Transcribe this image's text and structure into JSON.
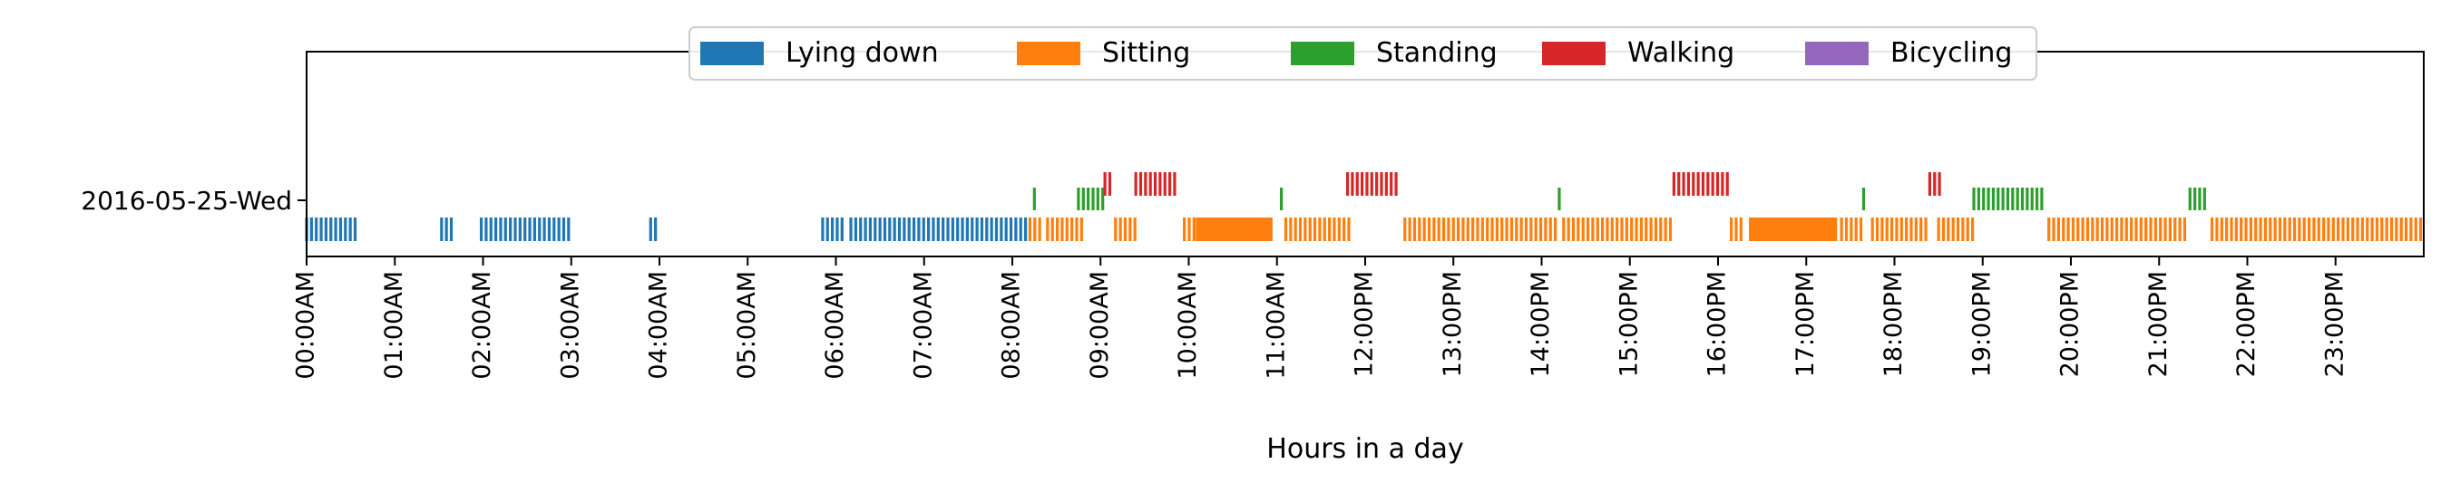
{
  "chart_data": {
    "type": "timeline",
    "xlabel": "Hours in a day",
    "ylabel": "",
    "row_label": "2016-05-25-Wed",
    "xlim_hours": [
      0,
      24
    ],
    "x_tick_labels": [
      "00:00AM",
      "01:00AM",
      "02:00AM",
      "03:00AM",
      "04:00AM",
      "05:00AM",
      "06:00AM",
      "07:00AM",
      "08:00AM",
      "09:00AM",
      "10:00AM",
      "11:00AM",
      "12:00PM",
      "13:00PM",
      "14:00PM",
      "15:00PM",
      "16:00PM",
      "17:00PM",
      "18:00PM",
      "19:00PM",
      "20:00PM",
      "21:00PM",
      "22:00PM",
      "23:00PM"
    ],
    "legend_position": "top-center",
    "series": [
      {
        "name": "Lying down",
        "color": "#1f77b4",
        "level": 0,
        "intervals": [
          [
            0.0,
            0.58
          ],
          [
            1.53,
            1.66
          ],
          [
            1.98,
            3.0
          ],
          [
            3.9,
            4.0
          ],
          [
            5.85,
            6.1
          ],
          [
            6.17,
            8.18
          ]
        ]
      },
      {
        "name": "Sitting",
        "color": "#ff7f0e",
        "level": 0,
        "intervals": [
          [
            8.2,
            8.35
          ],
          [
            8.4,
            8.8
          ],
          [
            9.17,
            9.4
          ],
          [
            9.95,
            10.08
          ],
          [
            10.08,
            10.95
          ],
          [
            11.1,
            11.85
          ],
          [
            12.45,
            14.2
          ],
          [
            14.25,
            15.5
          ],
          [
            16.15,
            16.3
          ],
          [
            16.35,
            17.35
          ],
          [
            17.4,
            17.65
          ],
          [
            17.75,
            18.4
          ],
          [
            18.5,
            18.9
          ],
          [
            19.75,
            21.3
          ],
          [
            21.6,
            24.0
          ]
        ]
      },
      {
        "name": "Standing",
        "color": "#2ca02c",
        "level": 1,
        "intervals": [
          [
            8.25,
            8.3
          ],
          [
            8.75,
            9.05
          ],
          [
            11.05,
            11.1
          ],
          [
            14.2,
            14.25
          ],
          [
            17.65,
            17.7
          ],
          [
            18.9,
            19.7
          ],
          [
            21.35,
            21.55
          ]
        ]
      },
      {
        "name": "Walking",
        "color": "#d62728",
        "level": 2,
        "intervals": [
          [
            9.05,
            9.12
          ],
          [
            9.4,
            9.85
          ],
          [
            11.8,
            12.35
          ],
          [
            15.5,
            16.12
          ],
          [
            18.4,
            18.55
          ]
        ]
      },
      {
        "name": "Bicycling",
        "color": "#9467bd",
        "level": 0,
        "intervals": []
      }
    ]
  }
}
